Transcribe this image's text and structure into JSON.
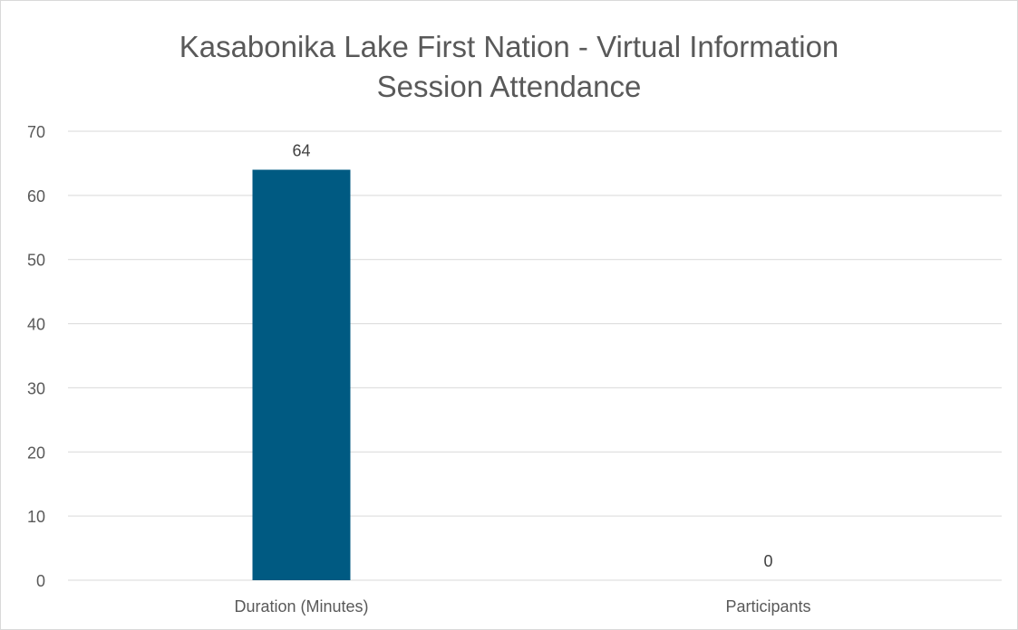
{
  "chart_data": {
    "type": "bar",
    "title": "Kasabonika Lake First Nation - Virtual Information\nSession Attendance",
    "categories": [
      "Duration (Minutes)",
      "Participants"
    ],
    "values": [
      64,
      0
    ],
    "data_labels": [
      "64",
      "0"
    ],
    "ylim": [
      0,
      70
    ],
    "yticks": [
      0,
      10,
      20,
      30,
      40,
      50,
      60,
      70
    ],
    "ytick_labels": [
      "0",
      "10",
      "20",
      "30",
      "40",
      "50",
      "60",
      "70"
    ],
    "grid": true,
    "legend": "none",
    "colors": {
      "bar": "#005a82",
      "grid": "#d9d9d9",
      "text": "#595959",
      "label": "#404040"
    }
  }
}
